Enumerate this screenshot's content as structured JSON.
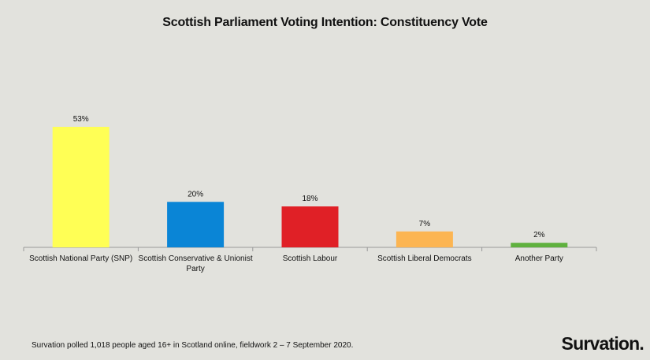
{
  "chart_data": {
    "type": "bar",
    "title": "Scottish Parliament Voting Intention: Constituency Vote",
    "categories": [
      "Scottish National Party (SNP)",
      "Scottish Conservative & Unionist Party",
      "Scottish Labour",
      "Scottish Liberal Democrats",
      "Another Party"
    ],
    "values": [
      53,
      20,
      18,
      7,
      2
    ],
    "data_labels": [
      "53%",
      "20%",
      "18%",
      "7%",
      "2%"
    ],
    "colors": [
      "#ffff55",
      "#0a85d6",
      "#e02026",
      "#fcb552",
      "#5fb13e"
    ],
    "xlabel": "",
    "ylabel": "",
    "ylim": [
      0,
      53
    ],
    "grid": false,
    "legend": "none"
  },
  "footnote": "Survation polled 1,018 people aged 16+ in Scotland online, fieldwork 2 – 7 September 2020.",
  "brand": "Survation."
}
